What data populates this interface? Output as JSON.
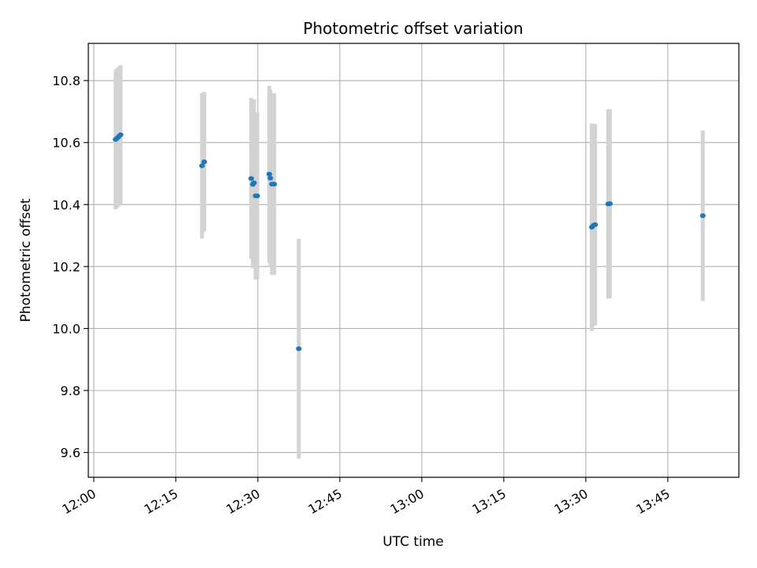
{
  "chart_data": {
    "type": "scatter",
    "title": "Photometric offset variation",
    "xlabel": "UTC time",
    "ylabel": "Photometric offset",
    "x_axis": {
      "kind": "time",
      "range": [
        "11:59",
        "13:58"
      ],
      "ticks": [
        "12:00",
        "12:15",
        "12:30",
        "12:45",
        "13:00",
        "13:15",
        "13:30",
        "13:45"
      ]
    },
    "y_axis": {
      "range": [
        9.52,
        10.92
      ],
      "ticks": [
        "9.6",
        "9.8",
        "10.0",
        "10.2",
        "10.4",
        "10.6",
        "10.8"
      ]
    },
    "grid": true,
    "colors": {
      "point": "#1f77b4",
      "errorbar": "#d3d3d3",
      "grid": "#b0b0b0"
    },
    "points": [
      {
        "t": "12:04",
        "y": 10.61,
        "err": 0.225
      },
      {
        "t": "12:04.3",
        "y": 10.615,
        "err": 0.225
      },
      {
        "t": "12:04.6",
        "y": 10.62,
        "err": 0.225
      },
      {
        "t": "12:04.9",
        "y": 10.625,
        "err": 0.225
      },
      {
        "t": "12:19.8",
        "y": 10.525,
        "err": 0.235
      },
      {
        "t": "12:20.2",
        "y": 10.538,
        "err": 0.225
      },
      {
        "t": "12:28.8",
        "y": 10.484,
        "err": 0.26
      },
      {
        "t": "12:29.1",
        "y": 10.465,
        "err": 0.27
      },
      {
        "t": "12:29.3",
        "y": 10.47,
        "err": 0.27
      },
      {
        "t": "12:29.6",
        "y": 10.428,
        "err": 0.27
      },
      {
        "t": "12:29.9",
        "y": 10.428,
        "err": 0.27
      },
      {
        "t": "12:32.1",
        "y": 10.498,
        "err": 0.285
      },
      {
        "t": "12:32.3",
        "y": 10.485,
        "err": 0.285
      },
      {
        "t": "12:32.6",
        "y": 10.466,
        "err": 0.293
      },
      {
        "t": "12:33",
        "y": 10.466,
        "err": 0.293
      },
      {
        "t": "12:37.5",
        "y": 9.935,
        "err": 0.355
      },
      {
        "t": "13:31.1",
        "y": 10.327,
        "err": 0.335
      },
      {
        "t": "13:31.4",
        "y": 10.333,
        "err": 0.325
      },
      {
        "t": "13:31.7",
        "y": 10.335,
        "err": 0.325
      },
      {
        "t": "13:34.1",
        "y": 10.402,
        "err": 0.305
      },
      {
        "t": "13:34.4",
        "y": 10.403,
        "err": 0.305
      },
      {
        "t": "13:51.4",
        "y": 10.364,
        "err": 0.275
      }
    ]
  }
}
